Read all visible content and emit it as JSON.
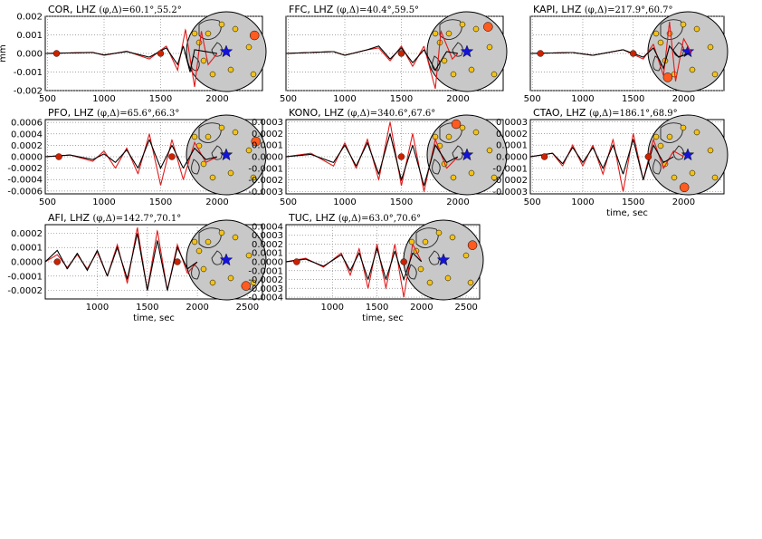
{
  "figure": {
    "ylabel": "mm",
    "xlabel": "time, sec",
    "colors": {
      "observed": "#000000",
      "synthetic": "#e21a1a",
      "marker": "#cc2200",
      "globe_fill": "#c8c8c8",
      "station": "#f2c21b",
      "target_station": "#ff5a1f",
      "epicenter": "#1414d8",
      "grid": "#888888"
    }
  },
  "chart_data": [
    {
      "type": "line",
      "station": "COR",
      "title": "COR, LHZ (φ,Δ)=60.1°,55.2°",
      "title_main": "COR, LHZ ",
      "title_math": "(φ,Δ)=60.1°,55.2°",
      "azimuth": 60.1,
      "distance": 55.2,
      "xlim": [
        480,
        2400
      ],
      "ylim": [
        -0.002,
        0.002
      ],
      "xticks": [
        "500",
        "1000",
        "1500",
        "2000"
      ],
      "yticks": [
        "0.002",
        "0.001",
        "0.000",
        "-0.001",
        "-0.002"
      ],
      "ytick_values": [
        0.002,
        0.001,
        0,
        -0.001,
        -0.002
      ],
      "arrivals": [
        580,
        1500
      ],
      "observed": [
        [
          480,
          0
        ],
        [
          900,
          5e-05
        ],
        [
          1000,
          -8e-05
        ],
        [
          1200,
          0.0001
        ],
        [
          1400,
          -0.0002
        ],
        [
          1550,
          0.0003
        ],
        [
          1650,
          -0.0006
        ],
        [
          1700,
          0.0004
        ],
        [
          1760,
          -0.001
        ],
        [
          1800,
          0.0002
        ],
        [
          2000,
          0
        ]
      ],
      "synthetic": [
        [
          480,
          0
        ],
        [
          900,
          6e-05
        ],
        [
          1000,
          -0.0001
        ],
        [
          1200,
          0.00012
        ],
        [
          1400,
          -0.0003
        ],
        [
          1550,
          0.0004
        ],
        [
          1650,
          -0.0009
        ],
        [
          1720,
          0.0013
        ],
        [
          1800,
          -0.0018
        ],
        [
          1860,
          0.0012
        ],
        [
          1920,
          -0.0006
        ],
        [
          2000,
          0
        ]
      ]
    },
    {
      "type": "line",
      "station": "FFC",
      "title": "FFC, LHZ (φ,Δ)=40.4°,59.5°",
      "title_main": "FFC, LHZ ",
      "title_math": "(φ,Δ)=40.4°,59.5°",
      "azimuth": 40.4,
      "distance": 59.5,
      "xlim": [
        480,
        2400
      ],
      "ylim": [
        -0.002,
        0.002
      ],
      "xticks": [
        "500",
        "1000",
        "1500",
        "2000"
      ],
      "yticks": [],
      "ytick_values": [
        0.002,
        0.001,
        0,
        -0.001,
        -0.002
      ],
      "arrivals": [
        1500
      ],
      "observed": [
        [
          480,
          0
        ],
        [
          900,
          0.0001
        ],
        [
          1000,
          -0.0001
        ],
        [
          1200,
          0.0002
        ],
        [
          1300,
          0.0004
        ],
        [
          1400,
          -0.0003
        ],
        [
          1500,
          0.0003
        ],
        [
          1600,
          -0.0005
        ],
        [
          1700,
          0.0002
        ],
        [
          1800,
          -0.0009
        ],
        [
          1900,
          0.0001
        ],
        [
          2000,
          0
        ]
      ],
      "synthetic": [
        [
          480,
          0
        ],
        [
          900,
          0.0001
        ],
        [
          1000,
          -0.0001
        ],
        [
          1200,
          0.0002
        ],
        [
          1300,
          0.0003
        ],
        [
          1400,
          -0.0004
        ],
        [
          1500,
          0.0004
        ],
        [
          1600,
          -0.0007
        ],
        [
          1700,
          0.0004
        ],
        [
          1800,
          -0.0019
        ],
        [
          1850,
          0.0012
        ],
        [
          1950,
          -0.0003
        ],
        [
          2000,
          0
        ]
      ]
    },
    {
      "type": "line",
      "station": "KAPI",
      "title": "KAPI, LHZ (φ,Δ)=217.9°,60.7°",
      "title_main": "KAPI, LHZ ",
      "title_math": "(φ,Δ)=217.9°,60.7°",
      "azimuth": 217.9,
      "distance": 60.7,
      "xlim": [
        480,
        2400
      ],
      "ylim": [
        -0.002,
        0.002
      ],
      "xticks": [
        "500",
        "1000",
        "1500",
        "2000"
      ],
      "yticks": [],
      "ytick_values": [
        0.002,
        0.001,
        0,
        -0.001,
        -0.002
      ],
      "arrivals": [
        580,
        1500
      ],
      "observed": [
        [
          480,
          0
        ],
        [
          900,
          5e-05
        ],
        [
          1100,
          -0.0001
        ],
        [
          1400,
          0.0002
        ],
        [
          1600,
          -0.0002
        ],
        [
          1700,
          0.0003
        ],
        [
          1800,
          -0.0008
        ],
        [
          1860,
          0.0004
        ],
        [
          1950,
          -0.0002
        ],
        [
          2050,
          0
        ]
      ],
      "synthetic": [
        [
          480,
          0
        ],
        [
          900,
          5e-05
        ],
        [
          1100,
          -0.0001
        ],
        [
          1400,
          0.0002
        ],
        [
          1600,
          -0.0003
        ],
        [
          1700,
          0.0005
        ],
        [
          1800,
          -0.0012
        ],
        [
          1860,
          0.0017
        ],
        [
          1920,
          -0.0015
        ],
        [
          2000,
          0.0008
        ],
        [
          2080,
          0
        ]
      ]
    },
    {
      "type": "line",
      "station": "PFO",
      "title": "PFO, LHZ (φ,Δ)=65.6°,66.3°",
      "title_main": "PFO, LHZ ",
      "title_math": "(φ,Δ)=65.6°,66.3°",
      "azimuth": 65.6,
      "distance": 66.3,
      "xlim": [
        480,
        2400
      ],
      "ylim": [
        -0.00065,
        0.00065
      ],
      "xticks": [
        "500",
        "1000",
        "1500",
        "2000"
      ],
      "yticks": [
        "0.0006",
        "0.0004",
        "0.0002",
        "0.0000",
        "-0.0002",
        "-0.0004",
        "-0.0006"
      ],
      "ytick_values": [
        0.0006,
        0.0004,
        0.0002,
        0,
        -0.0002,
        -0.0004,
        -0.0006
      ],
      "arrivals": [
        600,
        1600
      ],
      "observed": [
        [
          480,
          0
        ],
        [
          700,
          3e-05
        ],
        [
          900,
          -5e-05
        ],
        [
          1000,
          5e-05
        ],
        [
          1100,
          -0.0001
        ],
        [
          1200,
          0.00012
        ],
        [
          1300,
          -0.0002
        ],
        [
          1400,
          0.0003
        ],
        [
          1500,
          -0.0002
        ],
        [
          1600,
          0.0002
        ],
        [
          1700,
          -0.0002
        ],
        [
          1800,
          0.00015
        ],
        [
          1900,
          -5e-05
        ],
        [
          2000,
          0
        ]
      ],
      "synthetic": [
        [
          480,
          0
        ],
        [
          700,
          3e-05
        ],
        [
          900,
          -8e-05
        ],
        [
          1000,
          0.0001
        ],
        [
          1100,
          -0.0002
        ],
        [
          1200,
          0.00015
        ],
        [
          1300,
          -0.0003
        ],
        [
          1400,
          0.0004
        ],
        [
          1500,
          -0.0005
        ],
        [
          1600,
          0.0003
        ],
        [
          1700,
          -0.0004
        ],
        [
          1800,
          0.00025
        ],
        [
          1900,
          -0.0001
        ],
        [
          2000,
          0
        ]
      ]
    },
    {
      "type": "line",
      "station": "KONO",
      "title": "KONO, LHZ (φ,Δ)=340.6°,67.6°",
      "title_main": "KONO, LHZ ",
      "title_math": "(φ,Δ)=340.6°,67.6°",
      "azimuth": 340.6,
      "distance": 67.6,
      "xlim": [
        480,
        2400
      ],
      "ylim": [
        -0.00032,
        0.00032
      ],
      "xticks": [
        "500",
        "1000",
        "1500",
        "2000"
      ],
      "yticks": [
        "0.0003",
        "0.0002",
        "0.0001",
        "0.0000",
        "-0.0001",
        "-0.0002",
        "-0.0003"
      ],
      "ytick_values": [
        0.0003,
        0.0002,
        0.0001,
        0,
        -0.0001,
        -0.0002,
        -0.0003
      ],
      "arrivals": [
        1500
      ],
      "observed": [
        [
          480,
          0
        ],
        [
          700,
          2e-05
        ],
        [
          900,
          -5e-05
        ],
        [
          1000,
          0.0001
        ],
        [
          1100,
          -8e-05
        ],
        [
          1200,
          0.00012
        ],
        [
          1300,
          -0.00015
        ],
        [
          1400,
          0.0002
        ],
        [
          1500,
          -0.0002
        ],
        [
          1600,
          0.0001
        ],
        [
          1700,
          -0.00025
        ],
        [
          1800,
          0.0001
        ],
        [
          1900,
          -5e-05
        ],
        [
          2000,
          0
        ]
      ],
      "synthetic": [
        [
          480,
          0
        ],
        [
          700,
          3e-05
        ],
        [
          900,
          -8e-05
        ],
        [
          1000,
          0.00012
        ],
        [
          1100,
          -0.0001
        ],
        [
          1200,
          0.00015
        ],
        [
          1300,
          -0.0002
        ],
        [
          1400,
          0.0003
        ],
        [
          1500,
          -0.00025
        ],
        [
          1600,
          0.0002
        ],
        [
          1700,
          -0.0003
        ],
        [
          1800,
          0.00015
        ],
        [
          1900,
          -0.0001
        ],
        [
          2000,
          0
        ]
      ]
    },
    {
      "type": "line",
      "station": "CTAO",
      "title": "CTAO, LHZ (φ,Δ)=186.1°,68.9°",
      "title_main": "CTAO, LHZ ",
      "title_math": "(φ,Δ)=186.1°,68.9°",
      "azimuth": 186.1,
      "distance": 68.9,
      "xlim": [
        480,
        2400
      ],
      "ylim": [
        -0.00032,
        0.00032
      ],
      "xticks": [
        "500",
        "1000",
        "1500",
        "2000"
      ],
      "yticks": [
        "0.0003",
        "0.0002",
        "0.0001",
        "0.0000",
        "-0.0001",
        "-0.0002",
        "-0.0003"
      ],
      "ytick_values": [
        0.0003,
        0.0002,
        0.0001,
        0,
        -0.0001,
        -0.0002,
        -0.0003
      ],
      "arrivals": [
        620,
        1650
      ],
      "observed": [
        [
          480,
          0
        ],
        [
          700,
          3e-05
        ],
        [
          800,
          -6e-05
        ],
        [
          900,
          8e-05
        ],
        [
          1000,
          -5e-05
        ],
        [
          1100,
          8e-05
        ],
        [
          1200,
          -0.0001
        ],
        [
          1300,
          0.0001
        ],
        [
          1400,
          -0.00015
        ],
        [
          1500,
          0.00015
        ],
        [
          1600,
          -0.0002
        ],
        [
          1700,
          0.0001
        ],
        [
          1800,
          -5e-05
        ],
        [
          1900,
          0
        ]
      ],
      "synthetic": [
        [
          480,
          0
        ],
        [
          700,
          3e-05
        ],
        [
          800,
          -8e-05
        ],
        [
          900,
          0.0001
        ],
        [
          1000,
          -8e-05
        ],
        [
          1100,
          0.0001
        ],
        [
          1200,
          -0.00015
        ],
        [
          1300,
          0.00015
        ],
        [
          1400,
          -0.0003
        ],
        [
          1500,
          0.0002
        ],
        [
          1600,
          -0.0002
        ],
        [
          1700,
          0.00015
        ],
        [
          1800,
          -0.0001
        ],
        [
          1900,
          5e-05
        ],
        [
          2000,
          0
        ]
      ]
    },
    {
      "type": "line",
      "station": "AFI",
      "title": "AFI, LHZ (φ,Δ)=142.7°,70.1°",
      "title_main": "AFI, LHZ ",
      "title_math": "(φ,Δ)=142.7°,70.1°",
      "azimuth": 142.7,
      "distance": 70.1,
      "xlim": [
        480,
        2650
      ],
      "ylim": [
        -0.00026,
        0.00026
      ],
      "xticks": [
        "1000",
        "1500",
        "2000",
        "2500"
      ],
      "yticks": [
        "0.0002",
        "0.0001",
        "0.0000",
        "-0.0001",
        "-0.0002"
      ],
      "ytick_values": [
        0.0002,
        0.0001,
        0,
        -0.0001,
        -0.0002
      ],
      "arrivals": [
        600,
        1800
      ],
      "observed": [
        [
          480,
          0
        ],
        [
          600,
          8e-05
        ],
        [
          700,
          -5e-05
        ],
        [
          800,
          6e-05
        ],
        [
          900,
          -6e-05
        ],
        [
          1000,
          8e-05
        ],
        [
          1100,
          -0.0001
        ],
        [
          1200,
          0.0001
        ],
        [
          1300,
          -0.00012
        ],
        [
          1400,
          0.0002
        ],
        [
          1500,
          -0.0002
        ],
        [
          1600,
          0.00015
        ],
        [
          1700,
          -0.0002
        ],
        [
          1800,
          0.0001
        ],
        [
          1900,
          -5e-05
        ],
        [
          2000,
          0
        ]
      ],
      "synthetic": [
        [
          480,
          0
        ],
        [
          600,
          5e-05
        ],
        [
          700,
          -4e-05
        ],
        [
          800,
          5e-05
        ],
        [
          900,
          -5e-05
        ],
        [
          1000,
          7e-05
        ],
        [
          1100,
          -0.0001
        ],
        [
          1200,
          0.00012
        ],
        [
          1300,
          -0.00015
        ],
        [
          1400,
          0.00024
        ],
        [
          1500,
          -0.0002
        ],
        [
          1600,
          0.00022
        ],
        [
          1700,
          -0.0002
        ],
        [
          1800,
          0.00012
        ],
        [
          1900,
          -8e-05
        ],
        [
          2000,
          0
        ]
      ]
    },
    {
      "type": "line",
      "station": "TUC",
      "title": "TUC, LHZ (φ,Δ)=63.0°,70.6°",
      "title_main": "TUC, LHZ ",
      "title_math": "(φ,Δ)=63.0°,70.6°",
      "azimuth": 63.0,
      "distance": 70.6,
      "xlim": [
        480,
        2650
      ],
      "ylim": [
        -0.00042,
        0.00042
      ],
      "xticks": [
        "1000",
        "1500",
        "2000",
        "2500"
      ],
      "yticks": [
        "0.0004",
        "0.0003",
        "0.0002",
        "0.0001",
        "0.0000",
        "-0.0001",
        "-0.0002",
        "-0.0003",
        "-0.0004"
      ],
      "ytick_values": [
        0.0004,
        0.0003,
        0.0002,
        0.0001,
        0,
        -0.0001,
        -0.0002,
        -0.0003,
        -0.0004
      ],
      "arrivals": [
        600,
        1800
      ],
      "observed": [
        [
          480,
          0
        ],
        [
          700,
          3e-05
        ],
        [
          900,
          -5e-05
        ],
        [
          1100,
          8e-05
        ],
        [
          1200,
          -0.0001
        ],
        [
          1300,
          0.0001
        ],
        [
          1400,
          -0.0002
        ],
        [
          1500,
          0.00015
        ],
        [
          1600,
          -0.0002
        ],
        [
          1700,
          0.00012
        ],
        [
          1800,
          -0.0002
        ],
        [
          1900,
          0.0001
        ],
        [
          2000,
          0
        ]
      ],
      "synthetic": [
        [
          480,
          0
        ],
        [
          700,
          4e-05
        ],
        [
          900,
          -6e-05
        ],
        [
          1100,
          0.0001
        ],
        [
          1200,
          -0.00015
        ],
        [
          1300,
          0.00015
        ],
        [
          1400,
          -0.0003
        ],
        [
          1500,
          0.0002
        ],
        [
          1600,
          -0.0003
        ],
        [
          1700,
          0.0002
        ],
        [
          1800,
          -0.0004
        ],
        [
          1900,
          0.0002
        ],
        [
          2000,
          0
        ]
      ]
    }
  ]
}
